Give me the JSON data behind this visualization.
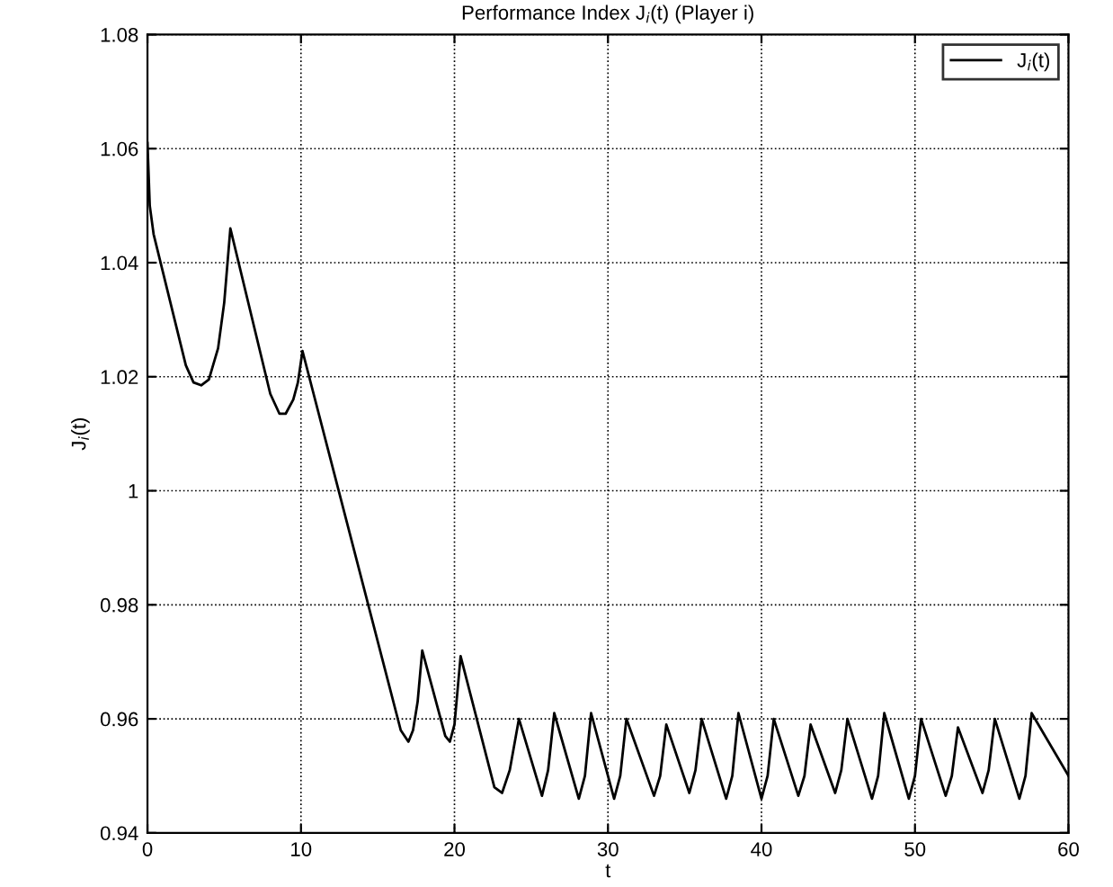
{
  "chart_data": {
    "type": "line",
    "title": "Performance Index J$_{i}$(t) (Player i)",
    "xlabel": "t",
    "ylabel": "J$_{i}$(t)",
    "xlim": [
      0,
      60
    ],
    "ylim": [
      0.94,
      1.08
    ],
    "xticks": [
      0,
      10,
      20,
      30,
      40,
      50,
      60
    ],
    "yticks": [
      0.94,
      0.96,
      0.98,
      1,
      1.02,
      1.04,
      1.06,
      1.08
    ],
    "grid": true,
    "legend": "top right",
    "line_style": "solid",
    "marker": "none",
    "series": [
      {
        "name": "J$_{i}$(t)",
        "color": "#000000",
        "x": [
          0,
          0.15,
          0.4,
          2.5,
          3.0,
          3.5,
          4.0,
          4.6,
          5.0,
          5.4,
          8.0,
          8.6,
          9.0,
          9.5,
          9.8,
          10.1,
          16.5,
          17.0,
          17.3,
          17.6,
          17.9,
          19.4,
          19.7,
          20.0,
          20.4,
          22.6,
          23.1,
          23.6,
          24.2,
          25.7,
          26.1,
          26.5,
          28.1,
          28.5,
          28.9,
          30.4,
          30.8,
          31.2,
          33.0,
          33.4,
          33.8,
          35.3,
          35.7,
          36.1,
          37.7,
          38.1,
          38.5,
          40.0,
          40.4,
          40.8,
          42.4,
          42.8,
          43.2,
          44.8,
          45.2,
          45.6,
          47.2,
          47.6,
          48.0,
          49.6,
          50.0,
          50.4,
          52.0,
          52.4,
          52.8,
          54.4,
          54.8,
          55.2,
          56.8,
          57.2,
          57.6,
          60
        ],
        "values": [
          1.061,
          1.05,
          1.045,
          1.022,
          1.019,
          1.0185,
          1.0195,
          1.025,
          1.033,
          1.046,
          1.017,
          1.0135,
          1.0135,
          1.016,
          1.019,
          1.0245,
          0.958,
          0.956,
          0.958,
          0.963,
          0.972,
          0.957,
          0.956,
          0.959,
          0.971,
          0.948,
          0.947,
          0.951,
          0.96,
          0.9465,
          0.951,
          0.961,
          0.946,
          0.95,
          0.961,
          0.946,
          0.95,
          0.96,
          0.9465,
          0.95,
          0.959,
          0.947,
          0.951,
          0.96,
          0.946,
          0.95,
          0.961,
          0.946,
          0.95,
          0.96,
          0.9465,
          0.95,
          0.959,
          0.947,
          0.951,
          0.96,
          0.946,
          0.95,
          0.961,
          0.946,
          0.95,
          0.96,
          0.9465,
          0.95,
          0.9585,
          0.947,
          0.951,
          0.96,
          0.946,
          0.95,
          0.961,
          0.95
        ]
      }
    ]
  }
}
